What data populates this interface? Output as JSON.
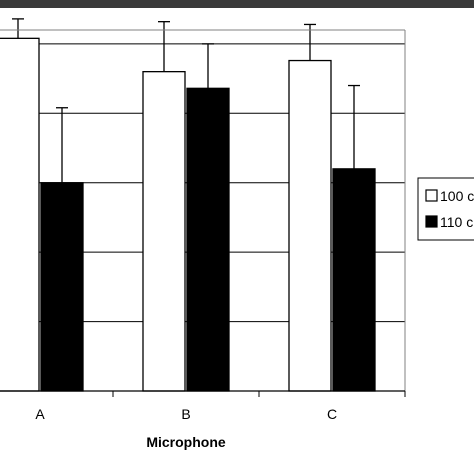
{
  "chart_data": {
    "type": "bar",
    "xlabel": "Microphone",
    "categories": [
      "A",
      "B",
      "C"
    ],
    "series": [
      {
        "name": "100 c",
        "fill": "#ffffff",
        "values": [
          1.27,
          1.15,
          1.19
        ],
        "errors": [
          0.07,
          0.18,
          0.13
        ]
      },
      {
        "name": "110 c",
        "fill": "#000000",
        "values": [
          0.75,
          1.09,
          0.8
        ],
        "errors": [
          0.27,
          0.16,
          0.3
        ]
      }
    ],
    "ylim": [
      0,
      1.3
    ],
    "grid": true,
    "legend_position": "right"
  }
}
